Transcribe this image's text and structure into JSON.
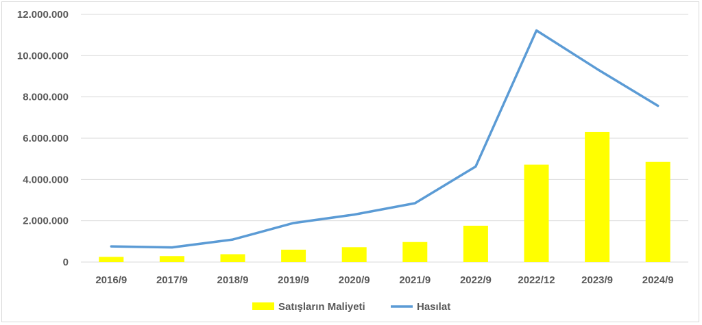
{
  "chart_data": {
    "type": "bar",
    "title": "",
    "xlabel": "",
    "ylabel": "",
    "categories": [
      "2016/9",
      "2017/9",
      "2018/9",
      "2019/9",
      "2020/9",
      "2021/9",
      "2022/9",
      "2022/12",
      "2023/9",
      "2024/9"
    ],
    "ylim": [
      0,
      12000000
    ],
    "yticks": [
      0,
      2000000,
      4000000,
      6000000,
      8000000,
      10000000,
      12000000
    ],
    "ytick_labels": [
      "0",
      "2.000.000",
      "4.000.000",
      "6.000.000",
      "8.000.000",
      "10.000.000",
      "12.000.000"
    ],
    "grid": true,
    "legend_position": "bottom",
    "series": [
      {
        "name": "Satışların Maliyeti",
        "type": "bar",
        "color": "#FFFF00",
        "values": [
          250000,
          290000,
          380000,
          600000,
          720000,
          970000,
          1760000,
          4720000,
          6300000,
          4850000
        ]
      },
      {
        "name": "Hasılat",
        "type": "line",
        "color": "#5B9BD5",
        "values": [
          760000,
          710000,
          1090000,
          1890000,
          2300000,
          2850000,
          4630000,
          11220000,
          9350000,
          7570000
        ]
      }
    ]
  }
}
